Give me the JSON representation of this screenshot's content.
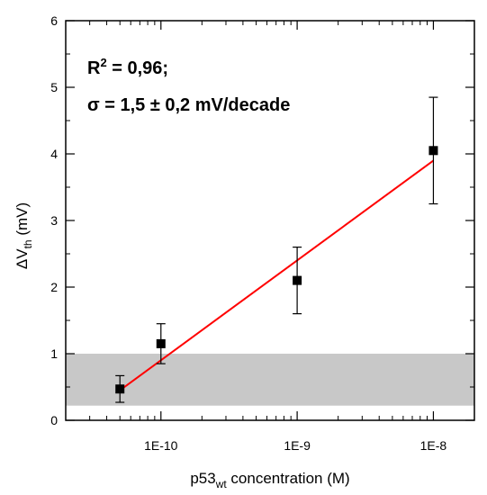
{
  "chart_data": {
    "type": "scatter",
    "x_scale": "log",
    "xlim": [
      2e-11,
      2e-08
    ],
    "ylim": [
      0,
      6
    ],
    "xlabel": {
      "main": "p53",
      "sub": "wt",
      "rest": " concentration  (M)"
    },
    "ylabel": {
      "delta": "Δ",
      "main": "V",
      "sub": "th",
      "rest": " (mV)"
    },
    "x_ticks": [
      {
        "value": 1e-10,
        "label": "1E-10"
      },
      {
        "value": 1e-09,
        "label": "1E-9"
      },
      {
        "value": 1e-08,
        "label": "1E-8"
      }
    ],
    "y_ticks": [
      {
        "value": 0,
        "label": "0"
      },
      {
        "value": 1,
        "label": "1"
      },
      {
        "value": 2,
        "label": "2"
      },
      {
        "value": 3,
        "label": "3"
      },
      {
        "value": 4,
        "label": "4"
      },
      {
        "value": 5,
        "label": "5"
      },
      {
        "value": 6,
        "label": "6"
      }
    ],
    "points": [
      {
        "x": 5e-11,
        "y": 0.47,
        "err": 0.2
      },
      {
        "x": 1e-10,
        "y": 1.15,
        "err": 0.3
      },
      {
        "x": 1e-09,
        "y": 2.1,
        "err": 0.5
      },
      {
        "x": 1e-08,
        "y": 4.05,
        "err": 0.8
      }
    ],
    "fit_line": {
      "x": [
        5e-11,
        1e-08
      ],
      "y": [
        0.45,
        3.9
      ],
      "color": "#ff0000"
    },
    "shaded_band": {
      "y": [
        0.22,
        1.0
      ],
      "color": "#c8c8c8"
    },
    "annotations": {
      "line1": {
        "main": "R",
        "sup": "2",
        "rest": " = 0,96;"
      },
      "line2": "σ = 1,5 ± 0,2 mV/decade"
    },
    "grid": false
  }
}
